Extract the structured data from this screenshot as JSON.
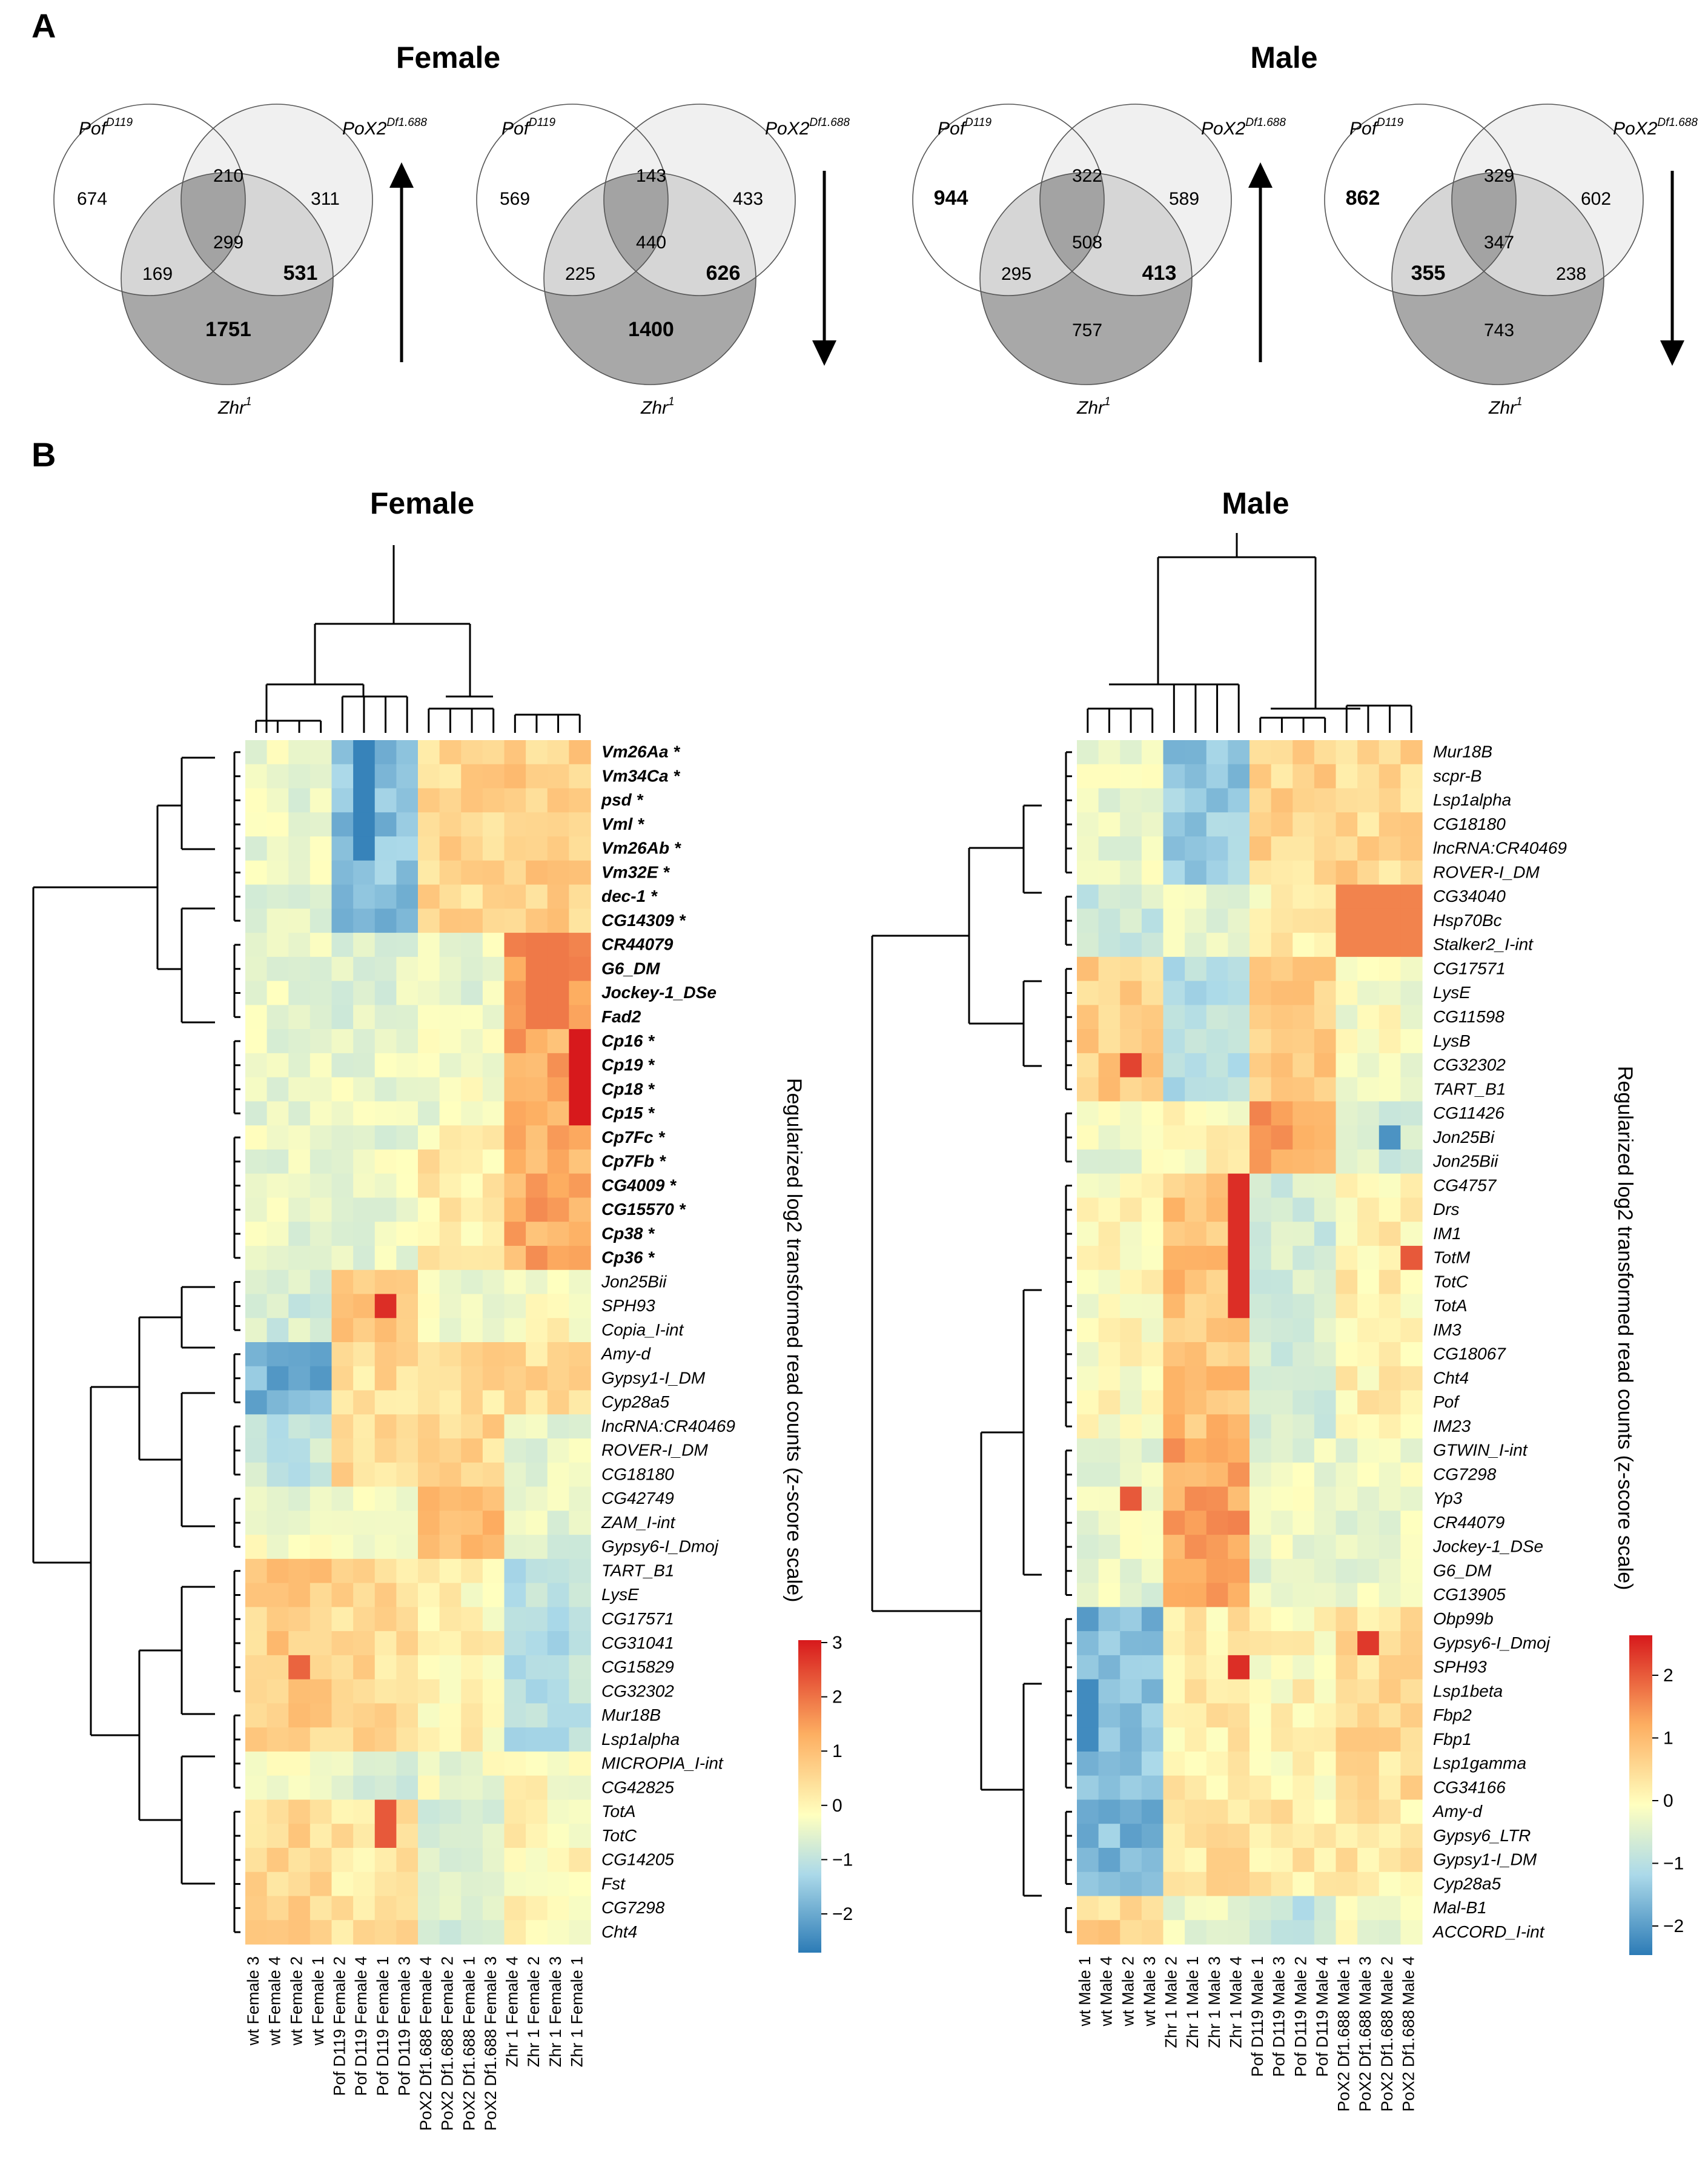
{
  "panel_a": {
    "letter": "A",
    "female_title": "Female",
    "male_title": "Male",
    "label_pof": "Pof",
    "label_pof_sup": "D119",
    "label_pox": "PoX2",
    "label_pox_sup": "Df1.688",
    "label_zhr": "Zhr",
    "label_zhr_sup": "1",
    "venns": [
      {
        "name": "female-up",
        "direction": "up",
        "pof_only": "674",
        "pof_pox": "210",
        "pox_only": "311",
        "pof_zhr": "169",
        "all": "299",
        "pox_zhr": "531",
        "zhr_only": "1751",
        "bold": [
          "pox_zhr",
          "zhr_only"
        ]
      },
      {
        "name": "female-down",
        "direction": "down",
        "pof_only": "569",
        "pof_pox": "143",
        "pox_only": "433",
        "pof_zhr": "225",
        "all": "440",
        "pox_zhr": "626",
        "zhr_only": "1400",
        "bold": [
          "pox_zhr",
          "zhr_only"
        ]
      },
      {
        "name": "male-up",
        "direction": "up",
        "pof_only": "944",
        "pof_pox": "322",
        "pox_only": "589",
        "pof_zhr": "295",
        "all": "508",
        "pox_zhr": "413",
        "zhr_only": "757",
        "bold": [
          "pof_only",
          "pox_zhr"
        ]
      },
      {
        "name": "male-down",
        "direction": "down",
        "pof_only": "862",
        "pof_pox": "329",
        "pox_only": "602",
        "pof_zhr": "355",
        "all": "347",
        "pox_zhr": "238",
        "zhr_only": "743",
        "bold": [
          "pof_only",
          "pof_zhr"
        ]
      }
    ]
  },
  "panel_b": {
    "letter": "B",
    "female": {
      "title": "Female",
      "genes": [
        "Vm26Aa *",
        "Vm34Ca *",
        "psd *",
        "Vml *",
        "Vm26Ab *",
        "Vm32E *",
        "dec-1 *",
        "CG14309 *",
        "CR44079",
        "G6_DM",
        "Jockey-1_DSe",
        "Fad2",
        "Cp16 *",
        "Cp19 *",
        "Cp18 *",
        "Cp15 *",
        "Cp7Fc *",
        "Cp7Fb *",
        "CG4009 *",
        "CG15570 *",
        "Cp38 *",
        "Cp36 *",
        "Jon25Bii",
        "SPH93",
        "Copia_I-int",
        "Amy-d",
        "Gypsy1-I_DM",
        "Cyp28a5",
        "lncRNA:CR40469",
        "ROVER-I_DM",
        "CG18180",
        "CG42749",
        "ZAM_I-int",
        "Gypsy6-I_Dmoj",
        "TART_B1",
        "LysE",
        "CG17571",
        "CG31041",
        "CG15829",
        "CG32302",
        "Mur18B",
        "Lsp1alpha",
        "MICROPIA_I-int",
        "CG42825",
        "TotA",
        "TotC",
        "CG14205",
        "Fst",
        "CG7298",
        "Cht4"
      ],
      "bold_count": 22,
      "samples": [
        "wt Female 3",
        "wt Female 4",
        "wt Female 2",
        "wt Female 1",
        "Pof D119 Female 2",
        "Pof D119 Female 4",
        "Pof D119 Female 1",
        "Pof D119 Female 3",
        "PoX2 Df1.688 Female 4",
        "PoX2 Df1.688 Female 2",
        "PoX2 Df1.688 Female 1",
        "PoX2 Df1.688 Female 3",
        "Zhr 1 Female 4",
        "Zhr 1 Female 2",
        "Zhr 1 Female 3",
        "Zhr 1 Female 1"
      ],
      "scale_title": "Regularized log2 transformed read counts (z-score scale)",
      "scale_ticks": [
        "3",
        "2",
        "1",
        "0",
        "−1",
        "−2"
      ],
      "zmin": -2.5,
      "zmax": 3.2
    },
    "male": {
      "title": "Male",
      "genes": [
        "Mur18B",
        "scpr-B",
        "Lsp1alpha",
        "CG18180",
        "lncRNA:CR40469",
        "ROVER-I_DM",
        "CG34040",
        "Hsp70Bc",
        "Stalker2_I-int",
        "CG17571",
        "LysE",
        "CG11598",
        "LysB",
        "CG32302",
        "TART_B1",
        "CG11426",
        "Jon25Bi",
        "Jon25Bii",
        "CG4757",
        "Drs",
        "IM1",
        "TotM",
        "TotC",
        "TotA",
        "IM3",
        "CG18067",
        "Cht4",
        "Pof",
        "IM23",
        "GTWIN_I-int",
        "CG7298",
        "Yp3",
        "CR44079",
        "Jockey-1_DSe",
        "G6_DM",
        "CG13905",
        "Obp99b",
        "Gypsy6-I_Dmoj",
        "SPH93",
        "Lsp1beta",
        "Fbp2",
        "Fbp1",
        "Lsp1gamma",
        "CG34166",
        "Amy-d",
        "Gypsy6_LTR",
        "Gypsy1-I_DM",
        "Cyp28a5",
        "Mal-B1",
        "ACCORD_I-int"
      ],
      "samples": [
        "wt Male 1",
        "wt Male 4",
        "wt Male 2",
        "wt Male 3",
        "Zhr 1 Male 2",
        "Zhr 1 Male 1",
        "Zhr 1 Male 3",
        "Zhr 1 Male 4",
        "Pof D119 Male 1",
        "Pof D119 Male 3",
        "Pof D119 Male 2",
        "Pof D119 Male 4",
        "PoX2 Df1.688 Male 1",
        "PoX2 Df1.688 Male 3",
        "PoX2 Df1.688 Male 2",
        "PoX2 Df1.688 Male 4"
      ],
      "scale_title": "Regularized log2 transformed read counts (z-score scale)",
      "scale_ticks": [
        "2",
        "1",
        "0",
        "−1",
        "−2"
      ],
      "zmin": -2.3,
      "zmax": 2.6
    }
  },
  "colors": {
    "venn_light": "#f0f0f0",
    "venn_mid": "#d6d6d6",
    "venn_dark": "#a8a8a8",
    "heat_low": "#2166ac",
    "heat_mid": "#ffffbf",
    "heat_high": "#d73027"
  }
}
